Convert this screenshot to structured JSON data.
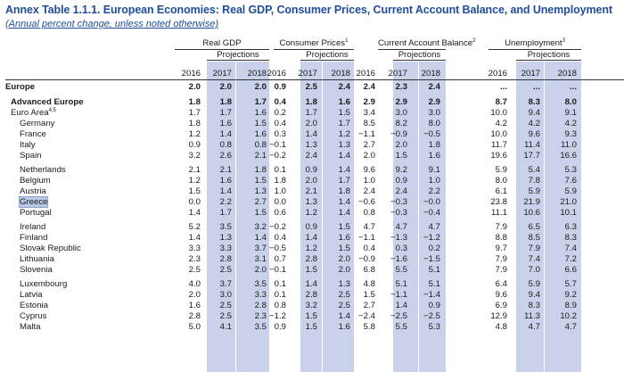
{
  "title": "Annex Table 1.1.1. European Economies: Real GDP, Consumer Prices, Current Account Balance, and Unemployment",
  "subtitle": "(Annual percent change, unless noted otherwise)",
  "groups": [
    {
      "label": "Real GDP",
      "footnote": ""
    },
    {
      "label": "Consumer Prices",
      "footnote": "1"
    },
    {
      "label": "Current Account Balance",
      "footnote": "2"
    },
    {
      "label": "Unemployment",
      "footnote": "3"
    }
  ],
  "projections_label": "Projections",
  "years": [
    "2016",
    "2017",
    "2018"
  ],
  "rows": [
    {
      "name": "Europe",
      "footnote": "",
      "style": "bold",
      "values": [
        "2.0",
        "2.0",
        "2.0",
        "0.9",
        "2.5",
        "2.4",
        "2.4",
        "2.3",
        "2.4",
        "...",
        "...",
        "..."
      ]
    },
    {
      "name": "Advanced Europe",
      "footnote": "",
      "style": "bold-indent",
      "values": [
        "1.8",
        "1.8",
        "1.7",
        "0.4",
        "1.8",
        "1.6",
        "2.9",
        "2.9",
        "2.9",
        "8.7",
        "8.3",
        "8.0"
      ]
    },
    {
      "name": "Euro Area",
      "footnote": "4,5",
      "style": "indent1",
      "values": [
        "1.7",
        "1.7",
        "1.6",
        "0.2",
        "1.7",
        "1.5",
        "3.4",
        "3.0",
        "3.0",
        "10.0",
        "9.4",
        "9.1"
      ]
    },
    {
      "name": "Germany",
      "footnote": "",
      "style": "indent2",
      "values": [
        "1.8",
        "1.6",
        "1.5",
        "0.4",
        "2.0",
        "1.7",
        "8.5",
        "8.2",
        "8.0",
        "4.2",
        "4.2",
        "4.2"
      ]
    },
    {
      "name": "France",
      "footnote": "",
      "style": "indent2",
      "values": [
        "1.2",
        "1.4",
        "1.6",
        "0.3",
        "1.4",
        "1.2",
        "−1.1",
        "−0.9",
        "−0.5",
        "10.0",
        "9.6",
        "9.3"
      ]
    },
    {
      "name": "Italy",
      "footnote": "",
      "style": "indent2",
      "values": [
        "0.9",
        "0.8",
        "0.8",
        "−0.1",
        "1.3",
        "1.3",
        "2.7",
        "2.0",
        "1.8",
        "11.7",
        "11.4",
        "11.0"
      ]
    },
    {
      "name": "Spain",
      "footnote": "",
      "style": "indent2",
      "values": [
        "3.2",
        "2.6",
        "2.1",
        "−0.2",
        "2.4",
        "1.4",
        "2.0",
        "1.5",
        "1.6",
        "19.6",
        "17.7",
        "16.6"
      ]
    },
    {
      "name": "Netherlands",
      "footnote": "",
      "style": "indent2",
      "values": [
        "2.1",
        "2.1",
        "1.8",
        "0.1",
        "0.9",
        "1.4",
        "9.6",
        "9.2",
        "9.1",
        "5.9",
        "5.4",
        "5.3"
      ]
    },
    {
      "name": "Belgium",
      "footnote": "",
      "style": "indent2",
      "values": [
        "1.2",
        "1.6",
        "1.5",
        "1.8",
        "2.0",
        "1.7",
        "1.0",
        "0.9",
        "1.0",
        "8.0",
        "7.8",
        "7.6"
      ]
    },
    {
      "name": "Austria",
      "footnote": "",
      "style": "indent2",
      "values": [
        "1.5",
        "1.4",
        "1.3",
        "1.0",
        "2.1",
        "1.8",
        "2.4",
        "2.4",
        "2.2",
        "6.1",
        "5.9",
        "5.9"
      ]
    },
    {
      "name": "Greece",
      "footnote": "",
      "style": "indent2-highlight",
      "values": [
        "0.0",
        "2.2",
        "2.7",
        "0.0",
        "1.3",
        "1.4",
        "−0.6",
        "−0.3",
        "−0.0",
        "23.8",
        "21.9",
        "21.0"
      ]
    },
    {
      "name": "Portugal",
      "footnote": "",
      "style": "indent2",
      "values": [
        "1.4",
        "1.7",
        "1.5",
        "0.6",
        "1.2",
        "1.4",
        "0.8",
        "−0.3",
        "−0.4",
        "11.1",
        "10.6",
        "10.1"
      ]
    },
    {
      "name": "Ireland",
      "footnote": "",
      "style": "indent2",
      "values": [
        "5.2",
        "3.5",
        "3.2",
        "−0.2",
        "0.9",
        "1.5",
        "4.7",
        "4.7",
        "4.7",
        "7.9",
        "6.5",
        "6.3"
      ]
    },
    {
      "name": "Finland",
      "footnote": "",
      "style": "indent2",
      "values": [
        "1.4",
        "1.3",
        "1.4",
        "0.4",
        "1.4",
        "1.6",
        "−1.1",
        "−1.3",
        "−1.2",
        "8.8",
        "8.5",
        "8.3"
      ]
    },
    {
      "name": "Slovak Republic",
      "footnote": "",
      "style": "indent2",
      "values": [
        "3.3",
        "3.3",
        "3.7",
        "−0.5",
        "1.2",
        "1.5",
        "0.4",
        "0.3",
        "0.2",
        "9.7",
        "7.9",
        "7.4"
      ]
    },
    {
      "name": "Lithuania",
      "footnote": "",
      "style": "indent2",
      "values": [
        "2.3",
        "2.8",
        "3.1",
        "0.7",
        "2.8",
        "2.0",
        "−0.9",
        "−1.6",
        "−1.5",
        "7.9",
        "7.4",
        "7.2"
      ]
    },
    {
      "name": "Slovenia",
      "footnote": "",
      "style": "indent2",
      "values": [
        "2.5",
        "2.5",
        "2.0",
        "−0.1",
        "1.5",
        "2.0",
        "6.8",
        "5.5",
        "5.1",
        "7.9",
        "7.0",
        "6.6"
      ]
    },
    {
      "name": "Luxembourg",
      "footnote": "",
      "style": "indent2",
      "values": [
        "4.0",
        "3.7",
        "3.5",
        "0.1",
        "1.4",
        "1.3",
        "4.8",
        "5.1",
        "5.1",
        "6.4",
        "5.9",
        "5.7"
      ]
    },
    {
      "name": "Latvia",
      "footnote": "",
      "style": "indent2",
      "values": [
        "2.0",
        "3.0",
        "3.3",
        "0.1",
        "2.8",
        "2.5",
        "1.5",
        "−1.1",
        "−1.4",
        "9.6",
        "9.4",
        "9.2"
      ]
    },
    {
      "name": "Estonia",
      "footnote": "",
      "style": "indent2",
      "values": [
        "1.6",
        "2.5",
        "2.8",
        "0.8",
        "3.2",
        "2.5",
        "2.7",
        "1.4",
        "0.9",
        "6.9",
        "8.3",
        "8.9"
      ]
    },
    {
      "name": "Cyprus",
      "footnote": "",
      "style": "indent2",
      "values": [
        "2.8",
        "2.5",
        "2.3",
        "−1.2",
        "1.5",
        "1.4",
        "−2.4",
        "−2.5",
        "−2.5",
        "12.9",
        "11.3",
        "10.2"
      ]
    },
    {
      "name": "Malta",
      "footnote": "",
      "style": "indent2",
      "values": [
        "5.0",
        "4.1",
        "3.5",
        "0.9",
        "1.5",
        "1.6",
        "5.8",
        "5.5",
        "5.3",
        "4.8",
        "4.7",
        "4.7"
      ]
    }
  ]
}
